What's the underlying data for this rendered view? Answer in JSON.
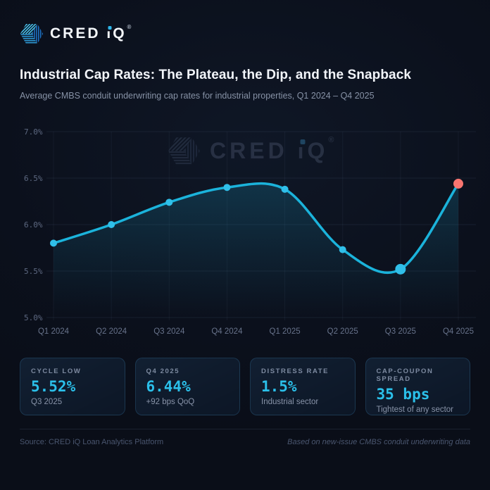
{
  "brand": {
    "logo_prefix": "CRED ",
    "logo_i": "i",
    "logo_q": "Q",
    "registered": "®"
  },
  "header": {
    "title": "Industrial Cap Rates: The Plateau, the Dip, and the Snapback",
    "subtitle": "Average CMBS conduit underwriting cap rates for industrial properties, Q1 2024 – Q4 2025"
  },
  "chart_data": {
    "type": "line",
    "title": "Industrial Cap Rates: The Plateau, the Dip, and the Snapback",
    "subtitle": "Average CMBS conduit underwriting cap rates for industrial properties, Q1 2024 – Q4 2025",
    "categories": [
      "Q1 2024",
      "Q2 2024",
      "Q3 2024",
      "Q4 2024",
      "Q1 2025",
      "Q2 2025",
      "Q3 2025",
      "Q4 2025"
    ],
    "values": [
      5.8,
      6.0,
      6.24,
      6.4,
      6.38,
      5.73,
      5.52,
      6.44
    ],
    "unit": "%",
    "ylim": [
      5.0,
      7.0
    ],
    "ytick_values": [
      5.0,
      5.5,
      6.0,
      6.5,
      7.0
    ],
    "ytick_labels": [
      "5.0%",
      "5.5%",
      "6.0%",
      "6.5%",
      "7.0%"
    ],
    "grid": true,
    "legend": "none",
    "line_color": "#1bb3db",
    "point_color": "#30bfe9",
    "area_color": "#1ba0c8",
    "highlight_point": {
      "index": 6,
      "meaning": "cycle low"
    },
    "final_point": {
      "index": 7,
      "color": "#f87570"
    },
    "watermark_prefix": "CRED "
  },
  "stat_cards": [
    {
      "label": "CYCLE LOW",
      "value": "5.52%",
      "sub": "Q3 2025"
    },
    {
      "label": "Q4 2025",
      "value": "6.44%",
      "sub": "+92 bps QoQ"
    },
    {
      "label": "DISTRESS RATE",
      "value": "1.5%",
      "sub": "Industrial sector"
    },
    {
      "label": "CAP-COUPON SPREAD",
      "value": "35 bps",
      "sub": "Tightest of any sector"
    }
  ],
  "footer": {
    "source": "Source: CRED iQ Loan Analytics Platform",
    "note": "Based on new-issue CMBS conduit underwriting data"
  },
  "colors": {
    "background": "#0b101c",
    "accent_cyan": "#1bb3db",
    "accent_red": "#f87570",
    "title_text": "#f2f5fa",
    "muted_text": "#8792a6"
  }
}
